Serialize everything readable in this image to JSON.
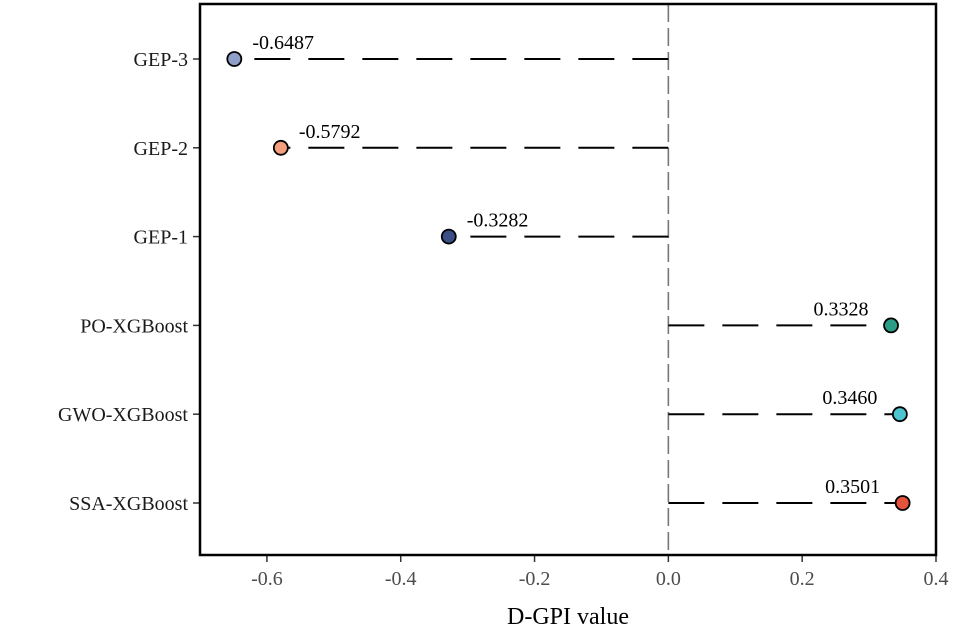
{
  "chart_data": {
    "type": "lollipop",
    "title": "",
    "xlabel": "D-GPI value",
    "ylabel": "",
    "xlim": [
      -0.7,
      0.4
    ],
    "x_ticks": [
      -0.6,
      -0.4,
      -0.2,
      0.0,
      0.2,
      0.4
    ],
    "x_tick_labels": [
      "-0.6",
      "-0.4",
      "-0.2",
      "0.0",
      "0.2",
      "0.4"
    ],
    "grid": false,
    "reference_line": 0.0,
    "categories": [
      "GEP-3",
      "GEP-2",
      "GEP-1",
      "PO-XGBoost",
      "GWO-XGBoost",
      "SSA-XGBoost"
    ],
    "values": [
      -0.6487,
      -0.5792,
      -0.3282,
      0.3328,
      0.346,
      0.3501
    ],
    "value_labels": [
      "-0.6487",
      "-0.5792",
      "-0.3282",
      "0.3328",
      "0.3460",
      "0.3501"
    ],
    "colors": [
      "#8f9fc7",
      "#f4a07f",
      "#3a4f86",
      "#2a9d86",
      "#4ec4d1",
      "#e5533d"
    ]
  }
}
